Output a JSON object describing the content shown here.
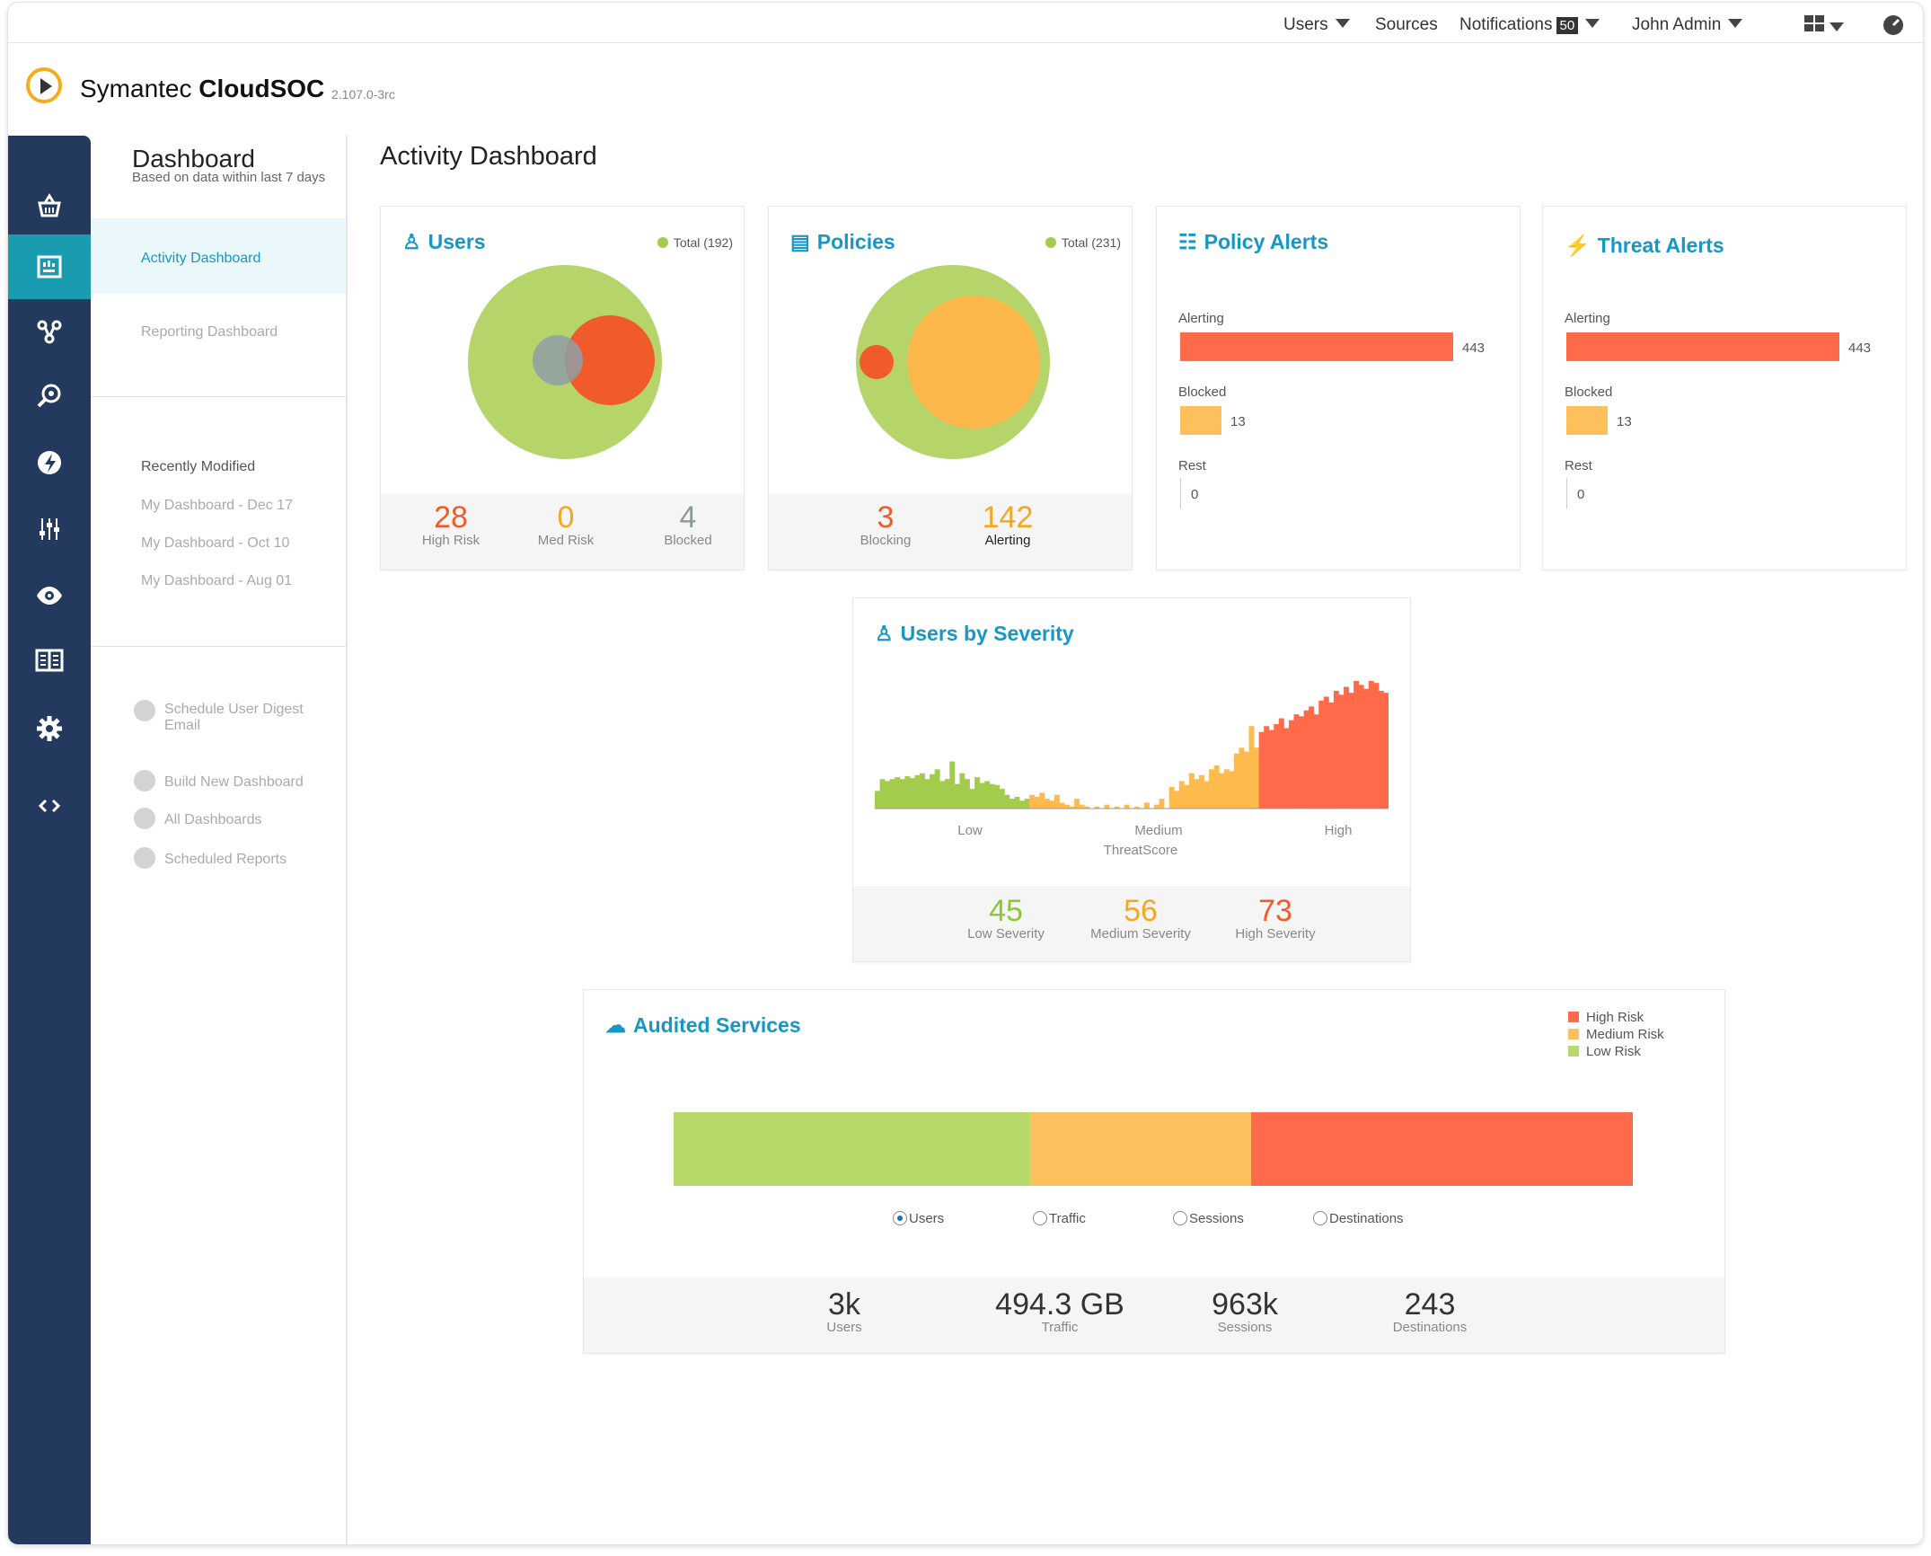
{
  "topnav": {
    "users": "Users",
    "sources": "Sources",
    "notifications": "Notifications",
    "notifications_count": "50",
    "user_name": "John Admin"
  },
  "brand": {
    "name_regular": "Symantec ",
    "name_bold": "CloudSOC",
    "version": "2.107.0-3rc"
  },
  "left_panel": {
    "title": "Dashboard",
    "subtitle": "Based on data within last 7 days",
    "links": [
      "Activity Dashboard",
      "Reporting Dashboard"
    ],
    "recent_heading": "Recently Modified",
    "recent": [
      "My Dashboard - Dec 17",
      "My Dashboard - Oct 10",
      "My Dashboard - Aug 01"
    ],
    "actions": [
      "Schedule User Digest Email",
      "Build New Dashboard",
      "All Dashboards",
      "Scheduled Reports"
    ]
  },
  "page_title": "Activity Dashboard",
  "users_card": {
    "title": "Users",
    "total": "Total (192)",
    "stats": [
      {
        "value": "28",
        "label": "High Risk",
        "color": "#f15a2b"
      },
      {
        "value": "0",
        "label": "Med Risk",
        "color": "#f5a623"
      },
      {
        "value": "4",
        "label": "Blocked",
        "color": "#8a9a9d"
      }
    ]
  },
  "policies_card": {
    "title": "Policies",
    "total": "Total (231)",
    "stats": [
      {
        "value": "3",
        "label": "Blocking",
        "color": "#f15a2b"
      },
      {
        "value": "142",
        "label": "Alerting",
        "color": "#f5a623"
      }
    ]
  },
  "policy_alerts": {
    "title": "Policy Alerts",
    "bars": [
      {
        "label": "Alerting",
        "value": 443,
        "color": "#ff6b4a"
      },
      {
        "label": "Blocked",
        "value": 13,
        "color": "#fdc05c"
      },
      {
        "label": "Rest",
        "value": 0,
        "color": "#cccccc"
      }
    ]
  },
  "threat_alerts": {
    "title": "Threat Alerts",
    "bars": [
      {
        "label": "Alerting",
        "value": 443,
        "color": "#ff6b4a"
      },
      {
        "label": "Blocked",
        "value": 13,
        "color": "#fdc05c"
      },
      {
        "label": "Rest",
        "value": 0,
        "color": "#cccccc"
      }
    ]
  },
  "severity": {
    "title": "Users by Severity",
    "x_ticks": [
      "Low",
      "Medium",
      "High"
    ],
    "xlabel": "ThreatScore",
    "stats": [
      {
        "value": "45",
        "label": "Low Severity",
        "color": "#8cc63f"
      },
      {
        "value": "56",
        "label": "Medium Severity",
        "color": "#f5a623"
      },
      {
        "value": "73",
        "label": "High Severity",
        "color": "#f15a2b"
      }
    ]
  },
  "audited": {
    "title": "Audited Services",
    "legend": [
      {
        "label": "High Risk",
        "color": "#ff6b4a"
      },
      {
        "label": "Medium Risk",
        "color": "#fdc05c"
      },
      {
        "label": "Low Risk",
        "color": "#b6d96a"
      }
    ],
    "segments": [
      {
        "name": "Low Risk",
        "fraction": 0.372,
        "color": "#b6d96a"
      },
      {
        "name": "Medium Risk",
        "fraction": 0.23,
        "color": "#fdc05c"
      },
      {
        "name": "High Risk",
        "fraction": 0.398,
        "color": "#ff6b4a"
      }
    ],
    "radios": [
      "Users",
      "Traffic",
      "Sessions",
      "Destinations"
    ],
    "radio_selected": "Users",
    "stats": [
      {
        "value": "3k",
        "label": "Users"
      },
      {
        "value": "494.3 GB",
        "label": "Traffic"
      },
      {
        "value": "963k",
        "label": "Sessions"
      },
      {
        "value": "243",
        "label": "Destinations"
      }
    ]
  },
  "chart_data": {
    "type": "bar",
    "title": "Users by Severity",
    "xlabel": "ThreatScore",
    "x_ticks": [
      "Low",
      "Medium",
      "High"
    ],
    "series": [
      {
        "name": "Low",
        "color": "#a3cc4c",
        "values": [
          18,
          30,
          28,
          30,
          32,
          30,
          33,
          31,
          34,
          36,
          30,
          35,
          40,
          28,
          30,
          48,
          25,
          36,
          30,
          20,
          32,
          26,
          28,
          25,
          24,
          20,
          14,
          10,
          12,
          8,
          10
        ]
      },
      {
        "name": "Medium",
        "color": "#fdbb4e",
        "values": [
          14,
          12,
          16,
          10,
          8,
          14,
          6,
          4,
          2,
          10,
          4,
          2,
          0,
          2,
          0,
          4,
          0,
          2,
          0,
          4,
          0,
          2,
          0,
          6,
          0,
          4,
          10,
          0,
          22,
          18,
          28,
          24,
          36,
          30,
          34,
          28,
          40,
          44,
          36,
          40,
          38,
          56,
          62,
          58,
          84,
          62
        ]
      },
      {
        "name": "High",
        "color": "#ff6b4a",
        "values": [
          78,
          84,
          80,
          86,
          92,
          82,
          90,
          96,
          94,
          100,
          104,
          96,
          110,
          114,
          108,
          120,
          116,
          124,
          118,
          130,
          126,
          122,
          130,
          128,
          120,
          118
        ]
      }
    ]
  }
}
